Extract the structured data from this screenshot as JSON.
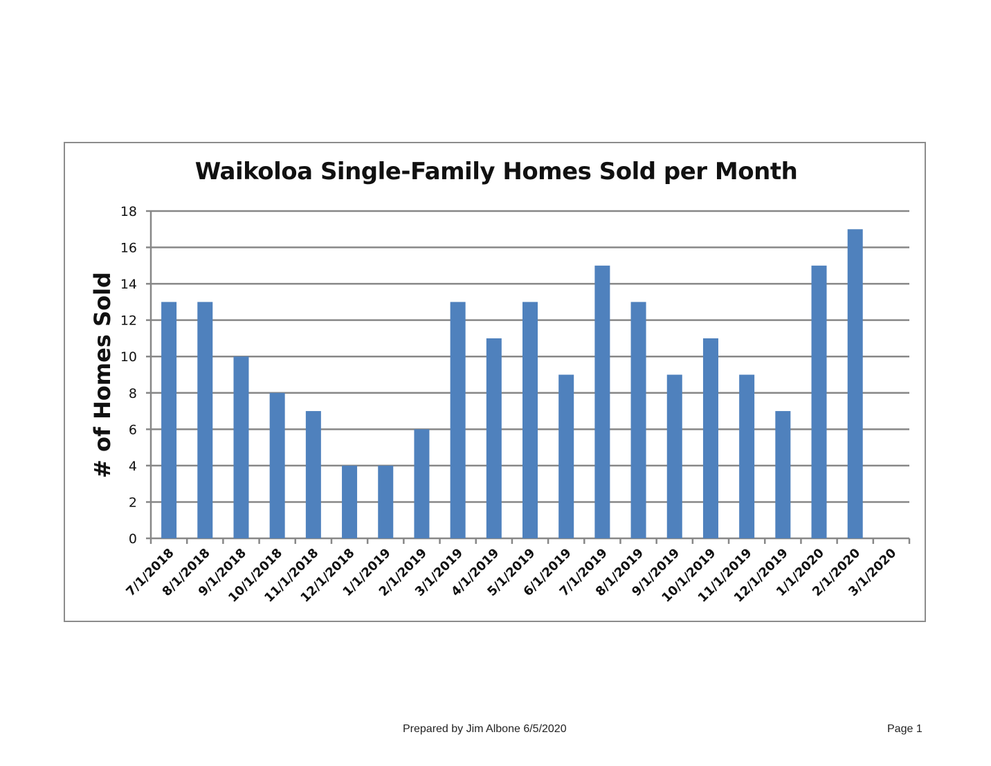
{
  "chart_data": {
    "type": "bar",
    "title": "Waikoloa Single-Family Homes Sold per Month",
    "xlabel": "",
    "ylabel": "# of Homes Sold",
    "ylim": [
      0,
      18
    ],
    "yticks": [
      0,
      2,
      4,
      6,
      8,
      10,
      12,
      14,
      16,
      18
    ],
    "grid": true,
    "legend": null,
    "bar_color": "#4f81bd",
    "categories": [
      "7/1/2018",
      "8/1/2018",
      "9/1/2018",
      "10/1/2018",
      "11/1/2018",
      "12/1/2018",
      "1/1/2019",
      "2/1/2019",
      "3/1/2019",
      "4/1/2019",
      "5/1/2019",
      "6/1/2019",
      "7/1/2019",
      "8/1/2019",
      "9/1/2019",
      "10/1/2019",
      "11/1/2019",
      "12/1/2019",
      "1/1/2020",
      "2/1/2020",
      "3/1/2020"
    ],
    "values": [
      13,
      13,
      10,
      8,
      7,
      4,
      4,
      6,
      13,
      11,
      13,
      9,
      15,
      13,
      9,
      11,
      9,
      7,
      15,
      17,
      null
    ]
  },
  "footer": {
    "prepared_by": "Prepared by Jim Albone 6/5/2020",
    "page": "Page 1"
  }
}
